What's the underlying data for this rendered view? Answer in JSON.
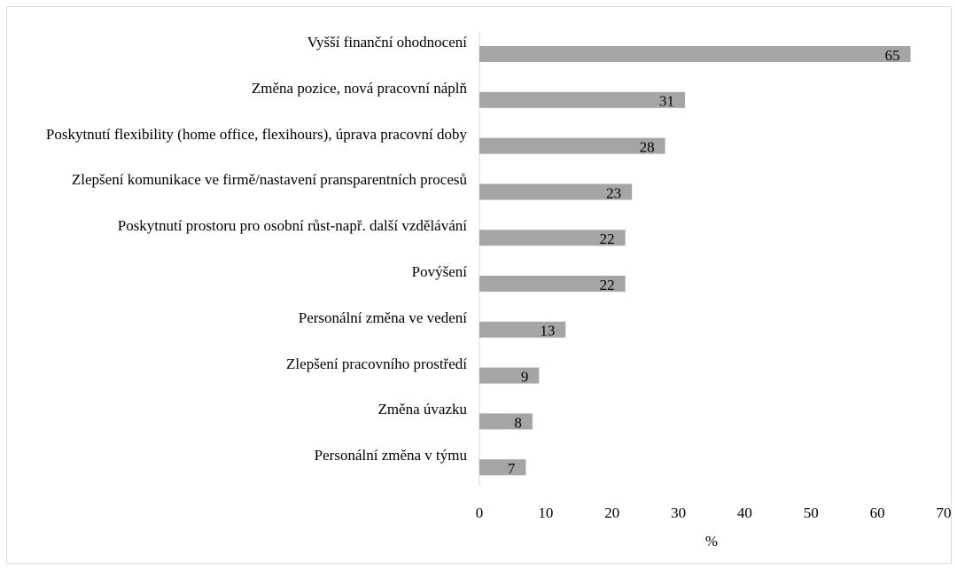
{
  "chart_data": {
    "type": "barh",
    "categories": [
      "Vyšší finanční ohodnocení",
      "Změna pozice, nová pracovní náplň",
      "Poskytnutí flexibility (home office, flexihours), úprava pracovní doby",
      "Zlepšení komunikace ve firmě/nastavení pransparentních procesů",
      "Poskytnutí prostoru pro osobní růst-např. další vzdělávání",
      "Povýšení",
      "Personální změna ve vedení",
      "Zlepšení pracovního prostředí",
      "Změna úvazku",
      "Personální změna v týmu"
    ],
    "values": [
      65,
      31,
      28,
      23,
      22,
      22,
      13,
      9,
      8,
      7
    ],
    "color": "#a5a5a5",
    "xlabel": "%",
    "xlim": [
      0,
      70
    ],
    "xticks": [
      0,
      10,
      20,
      30,
      40,
      50,
      60,
      70
    ]
  }
}
